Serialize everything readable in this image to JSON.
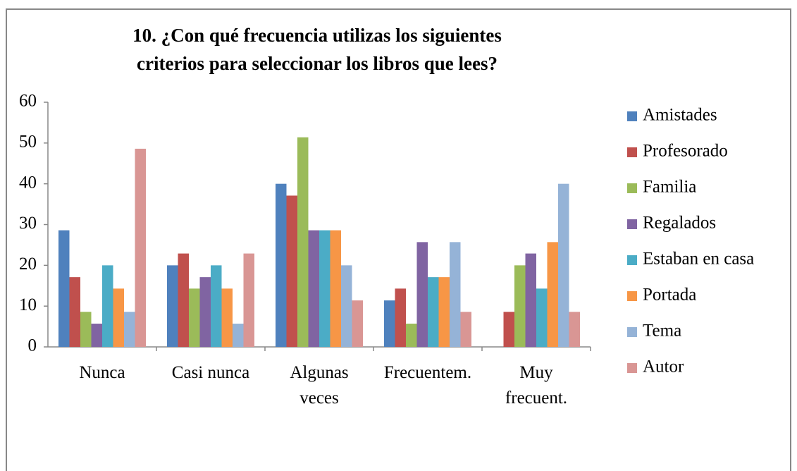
{
  "chart_data": {
    "type": "bar",
    "title": "10. ¿Con qué frecuencia utilizas los siguientes criterios para seleccionar los libros que lees?",
    "categories": [
      "Nunca",
      "Casi nunca",
      "Algunas veces",
      "Frecuentem.",
      "Muy frecuent."
    ],
    "series": [
      {
        "name": "Amistades",
        "color": "#4f81bd",
        "values": [
          28.6,
          20,
          40,
          11.4,
          0
        ]
      },
      {
        "name": "Profesorado",
        "color": "#c0504d",
        "values": [
          17.1,
          22.9,
          37.1,
          14.3,
          8.6
        ]
      },
      {
        "name": "Familia",
        "color": "#9bbb59",
        "values": [
          8.6,
          14.3,
          51.4,
          5.7,
          20
        ]
      },
      {
        "name": "Regalados",
        "color": "#8064a2",
        "values": [
          5.7,
          17.1,
          28.6,
          25.7,
          22.9
        ]
      },
      {
        "name": "Estaban en casa",
        "color": "#4bacc6",
        "values": [
          20,
          20,
          28.6,
          17.1,
          14.3
        ]
      },
      {
        "name": "Portada",
        "color": "#f79646",
        "values": [
          14.3,
          14.3,
          28.6,
          17.1,
          25.7
        ]
      },
      {
        "name": "Tema",
        "color": "#95b3d7",
        "values": [
          8.6,
          5.7,
          20,
          25.7,
          40
        ]
      },
      {
        "name": "Autor",
        "color": "#d99694",
        "values": [
          48.6,
          22.9,
          11.4,
          8.6,
          8.6
        ]
      }
    ],
    "ylim": [
      0,
      60
    ],
    "yticks": [
      0,
      10,
      20,
      30,
      40,
      50,
      60
    ],
    "grid": false,
    "legend": "right"
  }
}
